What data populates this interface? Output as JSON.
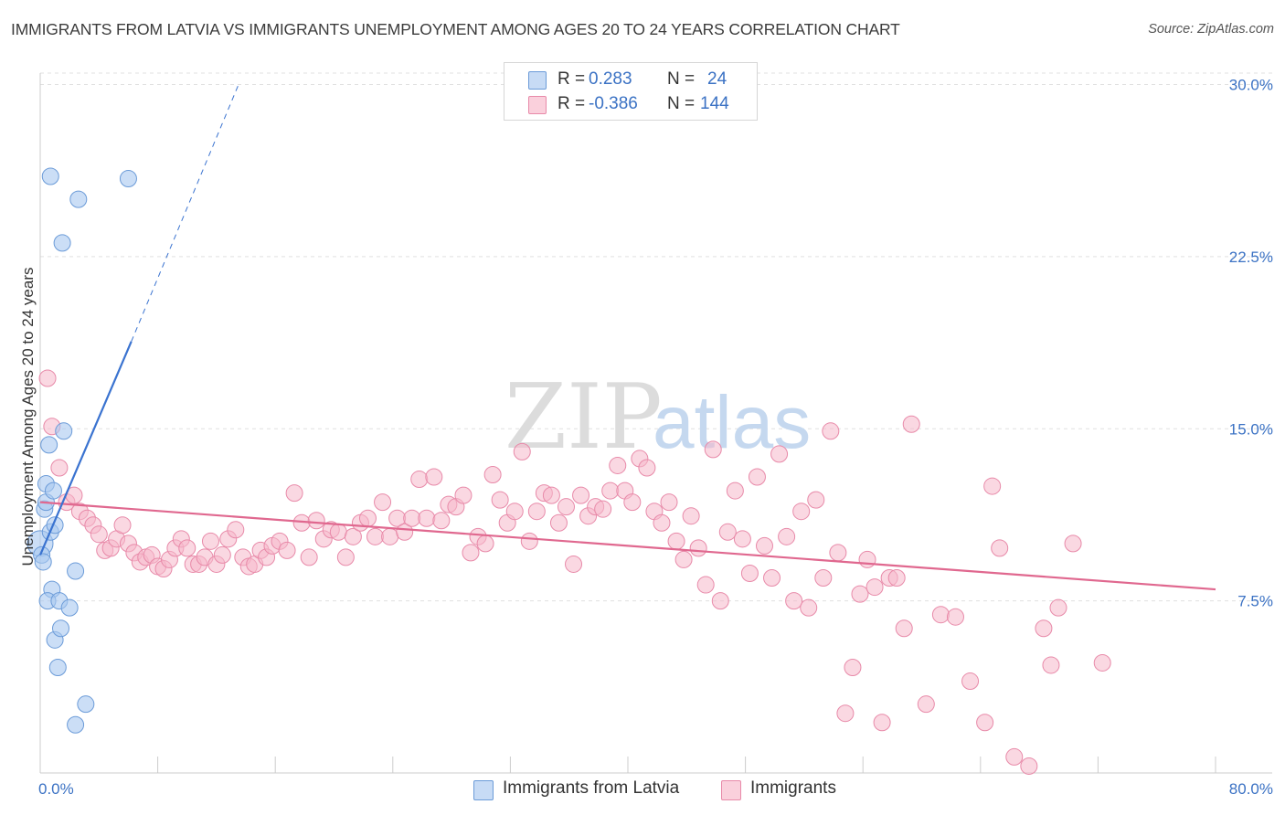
{
  "header": {
    "title": "IMMIGRANTS FROM LATVIA VS IMMIGRANTS UNEMPLOYMENT AMONG AGES 20 TO 24 YEARS CORRELATION CHART",
    "source": "Source: ZipAtlas.com"
  },
  "watermark": {
    "zip": "ZIP",
    "atlas": "atlas"
  },
  "legend_top": {
    "rows": [
      {
        "r_label": "R =",
        "r_value": "0.283",
        "n_label": "N =",
        "n_value": "24",
        "color": "#a9c8f0"
      },
      {
        "r_label": "R =",
        "r_value": "-0.386",
        "n_label": "N =",
        "n_value": "144",
        "color": "#f5b8cb"
      }
    ]
  },
  "legend_bottom": {
    "items": [
      {
        "label": "Immigrants from Latvia",
        "color": "#a9c8f0"
      },
      {
        "label": "Immigrants",
        "color": "#f5b8cb"
      }
    ]
  },
  "chart_data": {
    "type": "scatter",
    "title": "IMMIGRANTS FROM LATVIA VS IMMIGRANTS UNEMPLOYMENT AMONG AGES 20 TO 24 YEARS CORRELATION CHART",
    "xlabel": "",
    "ylabel": "Unemployment Among Ages 20 to 24 years",
    "xlim": [
      0,
      80
    ],
    "ylim": [
      0,
      30.5
    ],
    "x_tick_labels": [
      "0.0%",
      "80.0%"
    ],
    "y_ticks": [
      7.5,
      15.0,
      22.5,
      30.0
    ],
    "y_tick_labels": [
      "7.5%",
      "15.0%",
      "22.5%",
      "30.0%"
    ],
    "grid": true,
    "legend_position": "top-center",
    "colors": {
      "latvia_fill": "#a9c8f0",
      "latvia_stroke": "#6b9bd8",
      "latvia_line": "#3a73d0",
      "imm_fill": "#f5b8cb",
      "imm_stroke": "#e88aa9",
      "imm_line": "#e0688f",
      "axis_label": "#3b72c4",
      "grid": "#e0e0e0"
    },
    "series": [
      {
        "name": "Immigrants from Latvia",
        "points": [
          [
            0.0,
            10.0,
            14
          ],
          [
            0.1,
            9.5,
            9
          ],
          [
            0.2,
            9.2,
            9
          ],
          [
            0.3,
            11.5,
            9
          ],
          [
            0.4,
            11.8,
            9
          ],
          [
            0.4,
            12.6,
            9
          ],
          [
            0.6,
            14.3,
            9
          ],
          [
            0.7,
            10.5,
            9
          ],
          [
            0.8,
            8.0,
            9
          ],
          [
            0.9,
            12.3,
            9
          ],
          [
            1.0,
            10.8,
            9
          ],
          [
            1.0,
            5.8,
            9
          ],
          [
            0.5,
            7.5,
            9
          ],
          [
            1.2,
            4.6,
            9
          ],
          [
            1.3,
            7.5,
            9
          ],
          [
            1.4,
            6.3,
            9
          ],
          [
            1.5,
            23.1,
            9
          ],
          [
            1.6,
            14.9,
            9
          ],
          [
            2.0,
            7.2,
            9
          ],
          [
            2.4,
            8.8,
            9
          ],
          [
            2.4,
            2.1,
            9
          ],
          [
            0.7,
            26.0,
            9
          ],
          [
            2.6,
            25.0,
            9
          ],
          [
            3.1,
            3.0,
            9
          ],
          [
            6.0,
            25.9,
            9
          ]
        ],
        "trend": {
          "x0": 0.0,
          "y0": 9.5,
          "x1": 6.2,
          "y1": 18.8,
          "dash_x1": 13.5,
          "dash_y1": 30.0
        }
      },
      {
        "name": "Immigrants",
        "points": [
          [
            0.5,
            17.2
          ],
          [
            0.8,
            15.1
          ],
          [
            1.3,
            13.3
          ],
          [
            1.8,
            11.8
          ],
          [
            2.3,
            12.1
          ],
          [
            2.7,
            11.4
          ],
          [
            3.2,
            11.1
          ],
          [
            3.6,
            10.8
          ],
          [
            4.0,
            10.4
          ],
          [
            4.4,
            9.7
          ],
          [
            4.8,
            9.8
          ],
          [
            5.2,
            10.2
          ],
          [
            5.6,
            10.8
          ],
          [
            6.0,
            10.0
          ],
          [
            6.4,
            9.6
          ],
          [
            6.8,
            9.2
          ],
          [
            7.2,
            9.4
          ],
          [
            7.6,
            9.5
          ],
          [
            8.0,
            9.0
          ],
          [
            8.4,
            8.9
          ],
          [
            8.8,
            9.3
          ],
          [
            9.2,
            9.8
          ],
          [
            9.6,
            10.2
          ],
          [
            10.0,
            9.8
          ],
          [
            10.4,
            9.1
          ],
          [
            10.8,
            9.1
          ],
          [
            11.2,
            9.4
          ],
          [
            11.6,
            10.1
          ],
          [
            12.0,
            9.1
          ],
          [
            12.4,
            9.5
          ],
          [
            12.8,
            10.2
          ],
          [
            13.3,
            10.6
          ],
          [
            13.8,
            9.4
          ],
          [
            14.2,
            9.0
          ],
          [
            14.6,
            9.1
          ],
          [
            15.0,
            9.7
          ],
          [
            15.4,
            9.4
          ],
          [
            15.8,
            9.9
          ],
          [
            16.3,
            10.1
          ],
          [
            16.8,
            9.7
          ],
          [
            17.3,
            12.2
          ],
          [
            17.8,
            10.9
          ],
          [
            18.3,
            9.4
          ],
          [
            18.8,
            11.0
          ],
          [
            19.3,
            10.2
          ],
          [
            19.8,
            10.6
          ],
          [
            20.3,
            10.5
          ],
          [
            20.8,
            9.4
          ],
          [
            21.3,
            10.3
          ],
          [
            21.8,
            10.9
          ],
          [
            22.3,
            11.1
          ],
          [
            22.8,
            10.3
          ],
          [
            23.3,
            11.8
          ],
          [
            23.8,
            10.3
          ],
          [
            24.3,
            11.1
          ],
          [
            24.8,
            10.5
          ],
          [
            25.3,
            11.1
          ],
          [
            25.8,
            12.8
          ],
          [
            26.3,
            11.1
          ],
          [
            26.8,
            12.9
          ],
          [
            27.3,
            11.0
          ],
          [
            27.8,
            11.7
          ],
          [
            28.3,
            11.6
          ],
          [
            28.8,
            12.1
          ],
          [
            29.3,
            9.6
          ],
          [
            29.8,
            10.3
          ],
          [
            30.3,
            10.0
          ],
          [
            30.8,
            13.0
          ],
          [
            31.3,
            11.9
          ],
          [
            31.8,
            10.9
          ],
          [
            32.3,
            11.4
          ],
          [
            32.8,
            14.0
          ],
          [
            33.3,
            10.1
          ],
          [
            33.8,
            11.4
          ],
          [
            34.3,
            12.2
          ],
          [
            34.8,
            12.1
          ],
          [
            35.3,
            10.9
          ],
          [
            35.8,
            11.6
          ],
          [
            36.3,
            9.1
          ],
          [
            36.8,
            12.1
          ],
          [
            37.3,
            11.2
          ],
          [
            37.8,
            11.6
          ],
          [
            38.3,
            11.5
          ],
          [
            38.8,
            12.3
          ],
          [
            39.3,
            13.4
          ],
          [
            39.8,
            12.3
          ],
          [
            40.3,
            11.8
          ],
          [
            40.8,
            13.7
          ],
          [
            41.3,
            13.3
          ],
          [
            41.8,
            11.4
          ],
          [
            42.3,
            10.9
          ],
          [
            42.8,
            11.8
          ],
          [
            43.3,
            10.1
          ],
          [
            43.8,
            9.3
          ],
          [
            44.3,
            11.2
          ],
          [
            44.8,
            9.8
          ],
          [
            45.3,
            8.2
          ],
          [
            45.8,
            14.1
          ],
          [
            46.3,
            7.5
          ],
          [
            46.8,
            10.5
          ],
          [
            47.3,
            12.3
          ],
          [
            47.8,
            10.2
          ],
          [
            48.3,
            8.7
          ],
          [
            48.8,
            12.9
          ],
          [
            49.3,
            9.9
          ],
          [
            49.8,
            8.5
          ],
          [
            50.3,
            13.9
          ],
          [
            50.8,
            10.3
          ],
          [
            51.3,
            7.5
          ],
          [
            51.8,
            11.4
          ],
          [
            52.3,
            7.2
          ],
          [
            52.8,
            11.9
          ],
          [
            53.3,
            8.5
          ],
          [
            53.8,
            14.9
          ],
          [
            54.3,
            9.6
          ],
          [
            54.8,
            2.6
          ],
          [
            55.3,
            4.6
          ],
          [
            55.8,
            7.8
          ],
          [
            56.3,
            9.3
          ],
          [
            56.8,
            8.1
          ],
          [
            57.3,
            2.2
          ],
          [
            57.8,
            8.5
          ],
          [
            58.3,
            8.5
          ],
          [
            58.8,
            6.3
          ],
          [
            59.3,
            15.2
          ],
          [
            60.3,
            3.0
          ],
          [
            61.3,
            6.9
          ],
          [
            62.3,
            6.8
          ],
          [
            63.3,
            4.0
          ],
          [
            64.3,
            2.2
          ],
          [
            64.8,
            12.5
          ],
          [
            65.3,
            9.8
          ],
          [
            66.3,
            0.7
          ],
          [
            67.3,
            0.3
          ],
          [
            68.3,
            6.3
          ],
          [
            68.8,
            4.7
          ],
          [
            69.3,
            7.2
          ],
          [
            70.3,
            10.0
          ],
          [
            72.3,
            4.8
          ]
        ],
        "trend": {
          "x0": 0.0,
          "y0": 11.8,
          "x1": 80.0,
          "y1": 8.0
        }
      }
    ]
  }
}
